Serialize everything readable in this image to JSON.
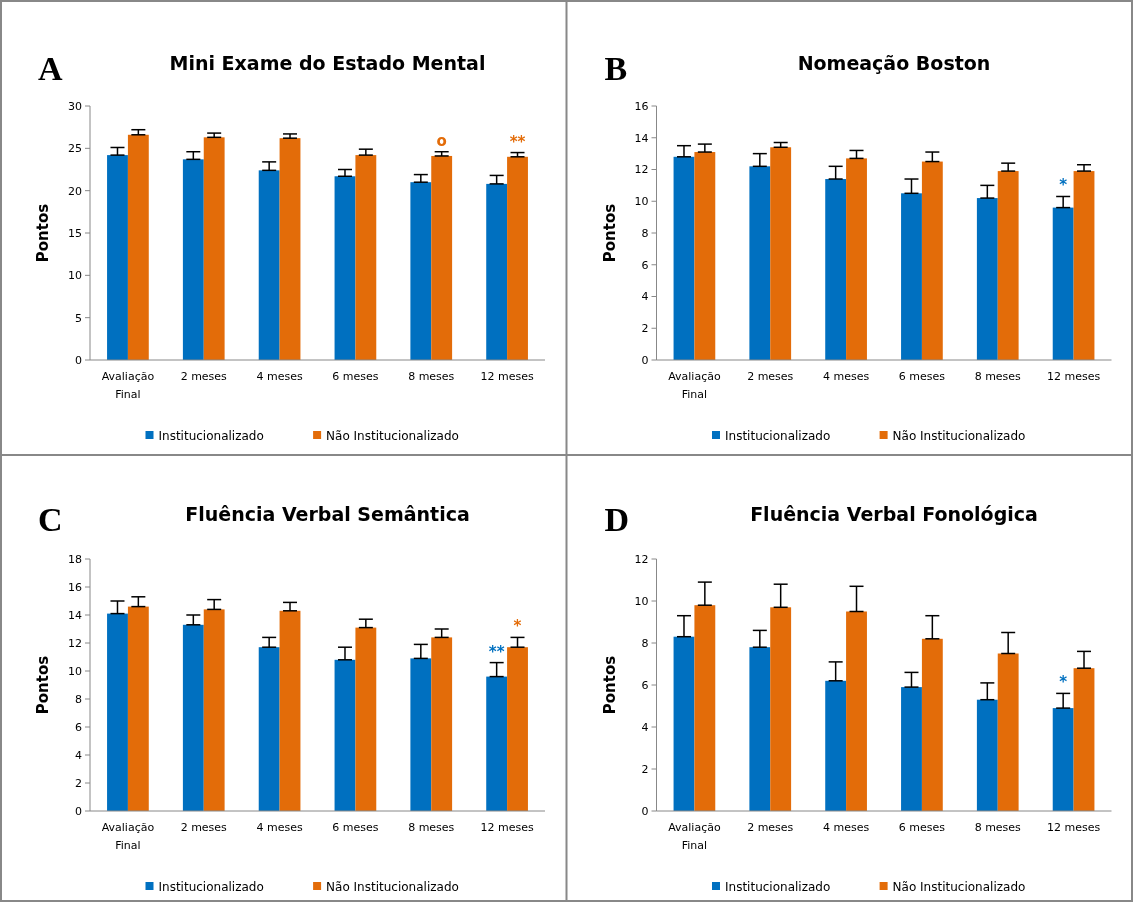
{
  "chart_data": [
    {
      "type": "bar",
      "title": "Mini Exame do Estado Mental",
      "ylabel": "Pontos",
      "annotations": [
        "A",
        {
          "text": "o",
          "x": "8 meses",
          "y": 24.6
        },
        {
          "text": "**",
          "x": "12 meses",
          "y": 24.5
        }
      ],
      "categories": [
        "Avaliação Final",
        "2 meses",
        "4 meses",
        "6 meses",
        "8 meses",
        "12 meses"
      ],
      "ylim": [
        0,
        30
      ],
      "yticks": [
        0,
        5,
        10,
        15,
        20,
        25,
        30
      ],
      "legend": "bottom",
      "series": [
        {
          "name": "Institucionalizado",
          "color": "#0070c0",
          "values": [
            24.2,
            23.7,
            22.4,
            21.7,
            21.0,
            20.8
          ],
          "errors": [
            [
              24.2,
              25.1
            ],
            [
              23.7,
              24.6
            ],
            [
              22.4,
              23.4
            ],
            [
              21.7,
              22.5
            ],
            [
              21.0,
              21.9
            ],
            [
              20.8,
              21.8
            ]
          ]
        },
        {
          "name": "Não Institucionalizado",
          "color": "#e36c09",
          "values": [
            26.6,
            26.3,
            26.2,
            24.2,
            24.1,
            24.0
          ],
          "errors": [
            [
              26.6,
              27.2
            ],
            [
              26.3,
              26.8
            ],
            [
              26.2,
              26.7
            ],
            [
              24.2,
              24.9
            ],
            [
              24.1,
              24.6
            ],
            [
              24.0,
              24.5
            ]
          ]
        }
      ]
    },
    {
      "type": "bar",
      "title": "Nomeação Boston",
      "ylabel": "Pontos",
      "annotations": [
        "B",
        {
          "text": "*",
          "x": "12 meses",
          "y": 10.3
        }
      ],
      "categories": [
        "Avaliação Final",
        "2 meses",
        "4 meses",
        "6 meses",
        "8 meses",
        "12 meses"
      ],
      "ylim": [
        0,
        16
      ],
      "yticks": [
        0,
        2,
        4,
        6,
        8,
        10,
        12,
        14,
        16
      ],
      "legend": "bottom",
      "series": [
        {
          "name": "Institucionalizado",
          "color": "#0070c0",
          "values": [
            12.8,
            12.2,
            11.4,
            10.5,
            10.2,
            9.6
          ],
          "errors": [
            [
              12.8,
              13.5
            ],
            [
              12.2,
              13.0
            ],
            [
              11.4,
              12.2
            ],
            [
              10.5,
              11.4
            ],
            [
              10.2,
              11.0
            ],
            [
              9.6,
              10.3
            ]
          ]
        },
        {
          "name": "Não Institucionalizado",
          "color": "#e36c09",
          "values": [
            13.1,
            13.4,
            12.7,
            12.5,
            11.9,
            11.9
          ],
          "errors": [
            [
              13.1,
              13.6
            ],
            [
              13.4,
              13.7
            ],
            [
              12.7,
              13.2
            ],
            [
              12.5,
              13.1
            ],
            [
              11.9,
              12.4
            ],
            [
              11.9,
              12.3
            ]
          ]
        }
      ]
    },
    {
      "type": "bar",
      "title": "Fluência Verbal Semântica",
      "ylabel": "Pontos",
      "annotations": [
        "C",
        {
          "text": "**",
          "x": "12 meses",
          "y": 10.6
        },
        {
          "text": "*",
          "x": "12 meses",
          "y": 12.4
        }
      ],
      "categories": [
        "Avaliação Final",
        "2 meses",
        "4 meses",
        "6 meses",
        "8 meses",
        "12 meses"
      ],
      "ylim": [
        0,
        18
      ],
      "yticks": [
        0,
        2,
        4,
        6,
        8,
        10,
        12,
        14,
        16,
        18
      ],
      "legend": "bottom",
      "series": [
        {
          "name": "Institucionalizado",
          "color": "#0070c0",
          "values": [
            14.1,
            13.3,
            11.7,
            10.8,
            10.9,
            9.6
          ],
          "errors": [
            [
              14.1,
              15.0
            ],
            [
              13.3,
              14.0
            ],
            [
              11.7,
              12.4
            ],
            [
              10.8,
              11.7
            ],
            [
              10.9,
              11.9
            ],
            [
              9.6,
              10.6
            ]
          ]
        },
        {
          "name": "Não Institucionalizado",
          "color": "#e36c09",
          "values": [
            14.6,
            14.4,
            14.3,
            13.1,
            12.4,
            11.7
          ],
          "errors": [
            [
              14.6,
              15.3
            ],
            [
              14.4,
              15.1
            ],
            [
              14.3,
              14.9
            ],
            [
              13.1,
              13.7
            ],
            [
              12.4,
              13.0
            ],
            [
              11.7,
              12.4
            ]
          ]
        }
      ]
    },
    {
      "type": "bar",
      "title": "Fluência Verbal Fonológica",
      "ylabel": "Pontos",
      "annotations": [
        "D",
        {
          "text": "*",
          "x": "12 meses",
          "y": 5.6
        }
      ],
      "categories": [
        "Avaliação Final",
        "2 meses",
        "4 meses",
        "6 meses",
        "8 meses",
        "12 meses"
      ],
      "ylim": [
        0,
        12
      ],
      "yticks": [
        0,
        2,
        4,
        6,
        8,
        10,
        12
      ],
      "legend": "bottom",
      "series": [
        {
          "name": "Institucionalizado",
          "color": "#0070c0",
          "values": [
            8.3,
            7.8,
            6.2,
            5.9,
            5.3,
            4.9
          ],
          "errors": [
            [
              8.3,
              9.3
            ],
            [
              7.8,
              8.6
            ],
            [
              6.2,
              7.1
            ],
            [
              5.9,
              6.6
            ],
            [
              5.3,
              6.1
            ],
            [
              4.9,
              5.6
            ]
          ]
        },
        {
          "name": "Não Institucionalizado",
          "color": "#e36c09",
          "values": [
            9.8,
            9.7,
            9.5,
            8.2,
            7.5,
            6.8
          ],
          "errors": [
            [
              9.8,
              10.9
            ],
            [
              9.7,
              10.8
            ],
            [
              9.5,
              10.7
            ],
            [
              8.2,
              9.3
            ],
            [
              7.5,
              8.5
            ],
            [
              6.8,
              7.6
            ]
          ]
        }
      ]
    }
  ]
}
